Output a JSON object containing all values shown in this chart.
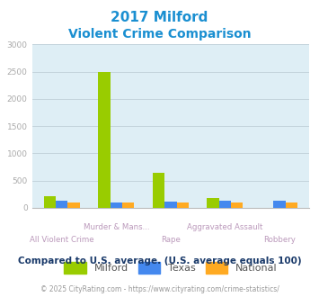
{
  "title_line1": "2017 Milford",
  "title_line2": "Violent Crime Comparison",
  "title_color": "#1a8fd1",
  "categories": [
    "All Violent Crime",
    "Murder & Mans...",
    "Rape",
    "Aggravated Assault",
    "Robbery"
  ],
  "milford": [
    220,
    2500,
    640,
    175,
    0
  ],
  "texas": [
    125,
    100,
    120,
    125,
    130
  ],
  "national": [
    100,
    100,
    100,
    100,
    100
  ],
  "milford_color": "#99cc00",
  "texas_color": "#4488ee",
  "national_color": "#ffaa22",
  "ylim": [
    0,
    3000
  ],
  "yticks": [
    0,
    500,
    1000,
    1500,
    2000,
    2500,
    3000
  ],
  "bar_width": 0.22,
  "fig_bg_color": "#ffffff",
  "plot_bg": "#deeef5",
  "grid_color": "#c0d0d8",
  "legend_labels": [
    "Milford",
    "Texas",
    "National"
  ],
  "footer_text": "Compared to U.S. average. (U.S. average equals 100)",
  "copyright_text": "© 2025 CityRating.com - https://www.cityrating.com/crime-statistics/",
  "footer_color": "#1a3a6a",
  "copyright_color": "#999999",
  "url_color": "#3399cc",
  "tick_color": "#aaaaaa",
  "label_color": "#bb99bb"
}
